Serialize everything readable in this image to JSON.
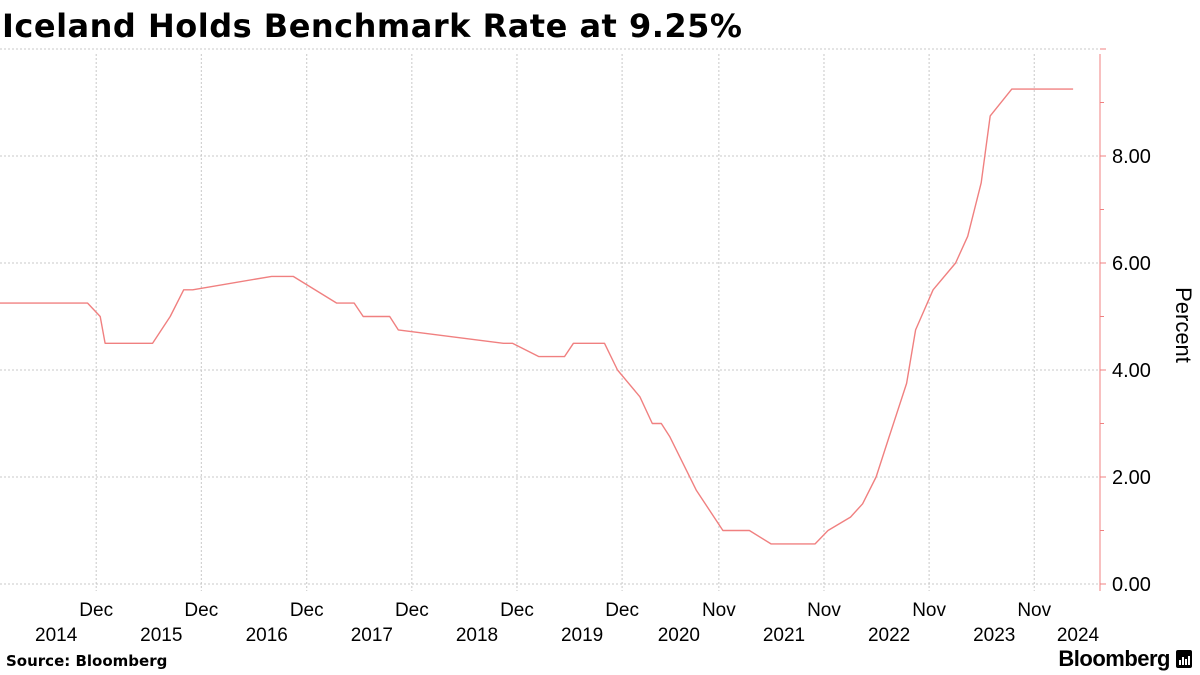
{
  "chart_data": {
    "type": "line",
    "title": "Iceland Holds Benchmark Rate at 9.25%",
    "ylabel": "Percent",
    "ylim": [
      0,
      10
    ],
    "yticks": [
      0,
      2,
      4,
      6,
      8
    ],
    "ytick_labels": [
      "0.00",
      "2.00",
      "4.00",
      "6.00",
      "8.00"
    ],
    "axis_side": "right",
    "grid": true,
    "line_color": "#f08080",
    "xlim": [
      "2014-01-01",
      "2024-04-01"
    ],
    "xticks": [
      {
        "date": "2014-12-01",
        "month": "Dec",
        "year": "2014"
      },
      {
        "date": "2015-12-01",
        "month": "Dec",
        "year": "2015"
      },
      {
        "date": "2016-12-01",
        "month": "Dec",
        "year": "2016"
      },
      {
        "date": "2017-12-01",
        "month": "Dec",
        "year": "2017"
      },
      {
        "date": "2018-12-01",
        "month": "Dec",
        "year": "2018"
      },
      {
        "date": "2019-12-01",
        "month": "Dec",
        "year": "2019"
      },
      {
        "date": "2020-11-01",
        "month": "Nov",
        "year": "2020"
      },
      {
        "date": "2021-11-01",
        "month": "Nov",
        "year": "2021"
      },
      {
        "date": "2022-11-01",
        "month": "Nov",
        "year": "2022"
      },
      {
        "date": "2023-11-01",
        "month": "Nov",
        "year": "2023"
      }
    ],
    "extra_year_label": {
      "date": "2024-04-01",
      "year": "2024"
    },
    "series": [
      {
        "x": [
          "2014-01-01",
          "2014-11-01",
          "2014-12-15",
          "2015-01-01",
          "2015-06-15",
          "2015-08-15",
          "2015-10-01",
          "2015-11-01",
          "2016-08-01",
          "2016-10-15",
          "2017-03-15",
          "2017-05-15",
          "2017-06-15",
          "2017-09-15",
          "2017-10-15",
          "2018-10-15",
          "2018-11-15",
          "2019-02-15",
          "2019-05-15",
          "2019-06-15",
          "2019-08-15",
          "2019-10-01",
          "2019-11-15",
          "2020-02-01",
          "2020-03-15",
          "2020-04-15",
          "2020-05-15",
          "2020-08-15",
          "2020-11-15",
          "2021-02-15",
          "2021-05-01",
          "2021-08-15",
          "2021-10-01",
          "2021-11-15",
          "2022-02-01",
          "2022-03-15",
          "2022-05-01",
          "2022-06-15",
          "2022-08-15",
          "2022-09-15",
          "2022-11-15",
          "2023-02-01",
          "2023-03-15",
          "2023-05-01",
          "2023-06-01",
          "2023-08-15",
          "2024-03-15"
        ],
        "y": [
          5.25,
          5.25,
          5.0,
          4.5,
          4.5,
          5.0,
          5.5,
          5.5,
          5.75,
          5.75,
          5.25,
          5.25,
          5.0,
          5.0,
          4.75,
          4.5,
          4.5,
          4.25,
          4.25,
          4.5,
          4.5,
          4.5,
          4.0,
          3.5,
          3.0,
          3.0,
          2.75,
          1.75,
          1.0,
          1.0,
          0.75,
          0.75,
          0.75,
          1.0,
          1.25,
          1.5,
          2.0,
          2.75,
          3.75,
          4.75,
          5.5,
          6.0,
          6.5,
          7.5,
          8.75,
          9.25,
          9.25
        ]
      }
    ]
  },
  "footer": {
    "source": "Source: Bloomberg",
    "brand": "Bloomberg"
  }
}
